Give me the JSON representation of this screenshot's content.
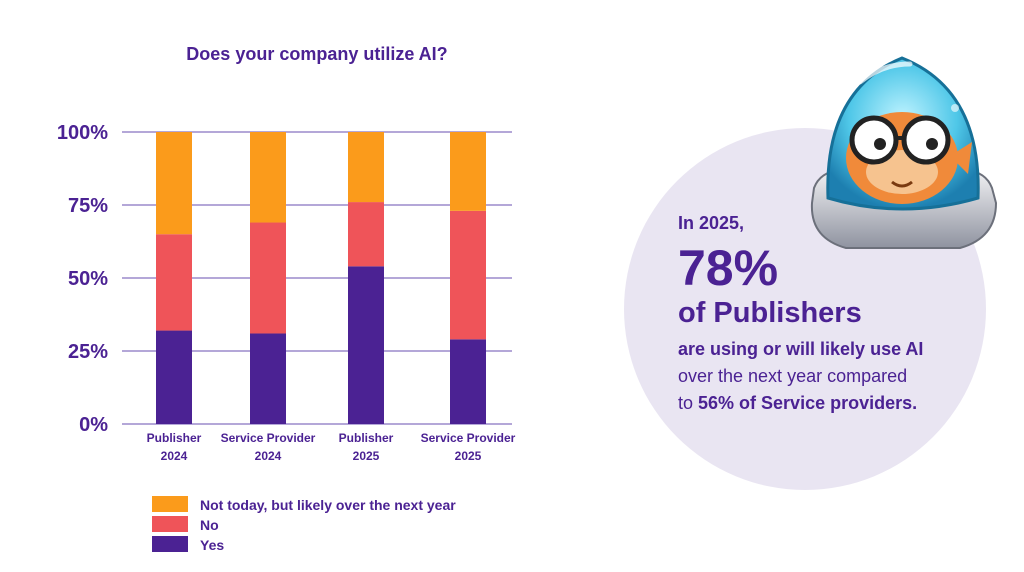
{
  "chart_data": {
    "type": "bar",
    "stacked": true,
    "title": "Does your company utilize AI?",
    "categories": [
      [
        "Publisher",
        "2024"
      ],
      [
        "Service Provider",
        "2024"
      ],
      [
        "Publisher",
        "2025"
      ],
      [
        "Service Provider",
        "2025"
      ]
    ],
    "series": [
      {
        "name": "Yes",
        "color": "#4b2293",
        "values": [
          32,
          31,
          54,
          29
        ]
      },
      {
        "name": "No",
        "color": "#ef5459",
        "values": [
          33,
          38,
          22,
          44
        ]
      },
      {
        "name": "Not today, but likely over the next year",
        "color": "#fb9b1b",
        "values": [
          35,
          31,
          24,
          27
        ]
      }
    ],
    "yticks": [
      "0%",
      "25%",
      "50%",
      "75%",
      "100%"
    ],
    "ylim": [
      0,
      100
    ],
    "grid": true,
    "legend": "bottom-left"
  },
  "callout": {
    "intro": "In 2025,",
    "big": "78%",
    "sub": "of Publishers",
    "line1": "are using or will likely use AI",
    "line2": "over the next year compared",
    "line3_prefix": "to ",
    "line3_bold": "56% of Service providers."
  },
  "icons": {
    "mascot": "pufferfish-in-jar-icon"
  }
}
